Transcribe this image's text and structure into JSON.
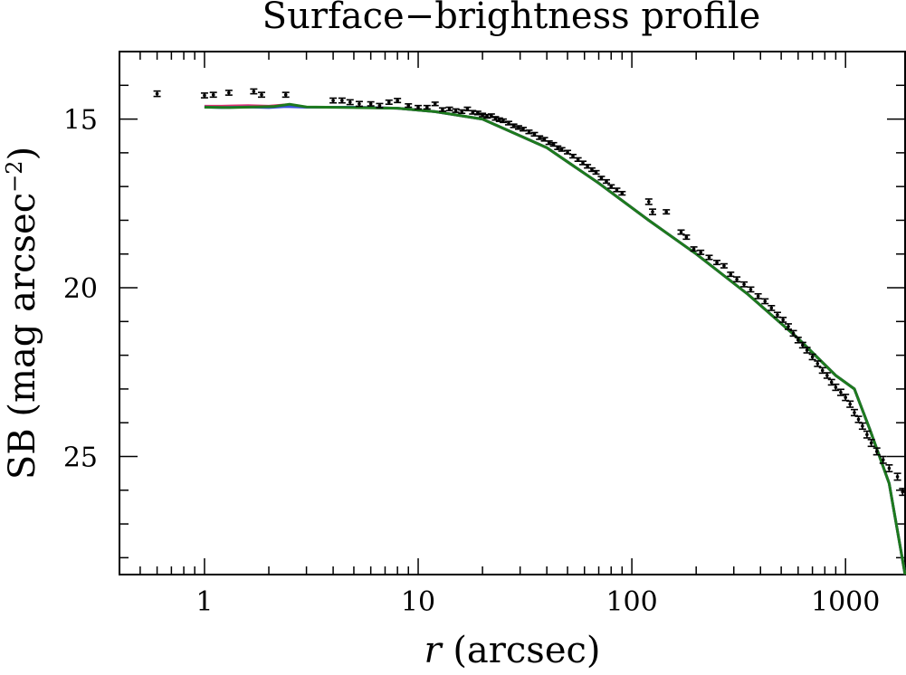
{
  "chart_data": {
    "type": "scatter",
    "title": "Surface−brightness profile",
    "xlabel_italic": "r",
    "xlabel_rest": " (arcsec)",
    "ylabel_main": "SB (mag arcsec",
    "ylabel_sup": "−2",
    "ylabel_close": ")",
    "xscale": "log",
    "xlim": [
      0.4,
      1900
    ],
    "ylim": [
      28.5,
      13
    ],
    "y_inverted": true,
    "x_ticks": [
      {
        "value": 1,
        "label": "1"
      },
      {
        "value": 10,
        "label": "10"
      },
      {
        "value": 100,
        "label": "100"
      },
      {
        "value": 1000,
        "label": "1000"
      }
    ],
    "y_ticks": [
      {
        "value": 15,
        "label": "15"
      },
      {
        "value": 20,
        "label": "20"
      },
      {
        "value": 25,
        "label": "25"
      }
    ],
    "y_minor_step": 1,
    "series": [
      {
        "kind": "errorbar",
        "color": "#000000",
        "points": [
          [
            0.6,
            14.25,
            0.08
          ],
          [
            1.0,
            14.3,
            0.07
          ],
          [
            1.1,
            14.28,
            0.07
          ],
          [
            1.3,
            14.22,
            0.07
          ],
          [
            1.7,
            14.18,
            0.07
          ],
          [
            1.85,
            14.28,
            0.07
          ],
          [
            2.4,
            14.28,
            0.07
          ],
          [
            4.0,
            14.45,
            0.07
          ],
          [
            4.4,
            14.45,
            0.07
          ],
          [
            4.8,
            14.5,
            0.07
          ],
          [
            5.3,
            14.55,
            0.07
          ],
          [
            6.0,
            14.55,
            0.06
          ],
          [
            6.6,
            14.6,
            0.06
          ],
          [
            7.3,
            14.5,
            0.06
          ],
          [
            8.0,
            14.45,
            0.06
          ],
          [
            9.0,
            14.6,
            0.05
          ],
          [
            10.0,
            14.65,
            0.05
          ],
          [
            11.0,
            14.65,
            0.05
          ],
          [
            12.0,
            14.55,
            0.05
          ],
          [
            13.0,
            14.72,
            0.05
          ],
          [
            14.0,
            14.7,
            0.05
          ],
          [
            15.0,
            14.75,
            0.05
          ],
          [
            16.0,
            14.78,
            0.05
          ],
          [
            17.0,
            14.7,
            0.05
          ],
          [
            18.0,
            14.8,
            0.05
          ],
          [
            19.0,
            14.82,
            0.05
          ],
          [
            20.0,
            14.88,
            0.05
          ],
          [
            21.0,
            14.92,
            0.05
          ],
          [
            22.0,
            14.9,
            0.05
          ],
          [
            23.0,
            14.98,
            0.05
          ],
          [
            24.0,
            15.02,
            0.05
          ],
          [
            25.0,
            15.05,
            0.05
          ],
          [
            26.5,
            15.12,
            0.05
          ],
          [
            28.0,
            15.2,
            0.05
          ],
          [
            29.5,
            15.25,
            0.05
          ],
          [
            31.0,
            15.3,
            0.05
          ],
          [
            33.0,
            15.38,
            0.05
          ],
          [
            35.0,
            15.45,
            0.05
          ],
          [
            37.0,
            15.55,
            0.05
          ],
          [
            39.0,
            15.6,
            0.05
          ],
          [
            41.0,
            15.7,
            0.05
          ],
          [
            43.0,
            15.75,
            0.05
          ],
          [
            45.0,
            15.85,
            0.05
          ],
          [
            47.0,
            15.9,
            0.05
          ],
          [
            50.0,
            15.98,
            0.05
          ],
          [
            53.0,
            16.1,
            0.05
          ],
          [
            56.0,
            16.2,
            0.05
          ],
          [
            59.0,
            16.3,
            0.05
          ],
          [
            62.0,
            16.4,
            0.05
          ],
          [
            65.0,
            16.5,
            0.05
          ],
          [
            68.0,
            16.58,
            0.05
          ],
          [
            72.0,
            16.75,
            0.05
          ],
          [
            76.0,
            16.85,
            0.05
          ],
          [
            80.0,
            17.0,
            0.05
          ],
          [
            85.0,
            17.1,
            0.05
          ],
          [
            90.0,
            17.2,
            0.05
          ],
          [
            120.0,
            17.45,
            0.08
          ],
          [
            125.0,
            17.75,
            0.08
          ],
          [
            145.0,
            17.75,
            0.06
          ],
          [
            170.0,
            18.35,
            0.06
          ],
          [
            180.0,
            18.5,
            0.06
          ],
          [
            195.0,
            18.85,
            0.06
          ],
          [
            210.0,
            18.95,
            0.06
          ],
          [
            230.0,
            19.1,
            0.06
          ],
          [
            250.0,
            19.25,
            0.06
          ],
          [
            270.0,
            19.35,
            0.06
          ],
          [
            290.0,
            19.6,
            0.06
          ],
          [
            310.0,
            19.75,
            0.07
          ],
          [
            335.0,
            19.9,
            0.07
          ],
          [
            360.0,
            20.05,
            0.07
          ],
          [
            390.0,
            20.25,
            0.07
          ],
          [
            420.0,
            20.4,
            0.07
          ],
          [
            450.0,
            20.6,
            0.07
          ],
          [
            480.0,
            20.8,
            0.07
          ],
          [
            510.0,
            20.95,
            0.07
          ],
          [
            540.0,
            21.15,
            0.08
          ],
          [
            570.0,
            21.35,
            0.08
          ],
          [
            600.0,
            21.55,
            0.08
          ],
          [
            630.0,
            21.7,
            0.08
          ],
          [
            660.0,
            21.85,
            0.08
          ],
          [
            700.0,
            22.05,
            0.08
          ],
          [
            740.0,
            22.25,
            0.08
          ],
          [
            780.0,
            22.45,
            0.08
          ],
          [
            820.0,
            22.6,
            0.08
          ],
          [
            860.0,
            22.8,
            0.08
          ],
          [
            900.0,
            22.95,
            0.09
          ],
          [
            950.0,
            23.1,
            0.09
          ],
          [
            1000.0,
            23.25,
            0.09
          ],
          [
            1050.0,
            23.45,
            0.09
          ],
          [
            1100.0,
            23.7,
            0.09
          ],
          [
            1150.0,
            23.9,
            0.09
          ],
          [
            1200.0,
            24.1,
            0.09
          ],
          [
            1260.0,
            24.35,
            0.1
          ],
          [
            1320.0,
            24.6,
            0.1
          ],
          [
            1400.0,
            24.85,
            0.1
          ],
          [
            1500.0,
            25.1,
            0.1
          ],
          [
            1600.0,
            25.35,
            0.1
          ],
          [
            1750.0,
            25.6,
            0.1
          ],
          [
            1850.0,
            26.05,
            0.1
          ]
        ]
      },
      {
        "kind": "line",
        "color": "#e03070",
        "points": [
          [
            1.0,
            14.62
          ],
          [
            1.2,
            14.62
          ],
          [
            1.6,
            14.6
          ],
          [
            2.0,
            14.62
          ],
          [
            2.4,
            14.58
          ],
          [
            3.0,
            14.65
          ],
          [
            5.0,
            14.65
          ],
          [
            8.0,
            14.68
          ],
          [
            12.0,
            14.78
          ],
          [
            20.0,
            15.0
          ],
          [
            40.0,
            15.85
          ],
          [
            70.0,
            16.9
          ],
          [
            120.0,
            18.0
          ],
          [
            200.0,
            19.0
          ],
          [
            350.0,
            20.2
          ],
          [
            600.0,
            21.5
          ],
          [
            900.0,
            22.6
          ],
          [
            1100.0,
            23.0
          ],
          [
            1300.0,
            24.2
          ],
          [
            1600.0,
            25.8
          ],
          [
            1900.0,
            28.5
          ]
        ]
      },
      {
        "kind": "line",
        "color": "#3a52d8",
        "points": [
          [
            1.0,
            14.64
          ],
          [
            1.2,
            14.66
          ],
          [
            1.6,
            14.64
          ],
          [
            2.0,
            14.66
          ],
          [
            2.4,
            14.63
          ],
          [
            3.0,
            14.65
          ],
          [
            5.0,
            14.65
          ],
          [
            8.0,
            14.68
          ],
          [
            12.0,
            14.78
          ],
          [
            20.0,
            15.0
          ],
          [
            40.0,
            15.85
          ],
          [
            70.0,
            16.9
          ],
          [
            120.0,
            18.0
          ],
          [
            200.0,
            19.0
          ],
          [
            350.0,
            20.2
          ],
          [
            600.0,
            21.5
          ],
          [
            900.0,
            22.6
          ],
          [
            1100.0,
            23.0
          ],
          [
            1300.0,
            24.2
          ],
          [
            1600.0,
            25.8
          ],
          [
            1900.0,
            28.5
          ]
        ]
      },
      {
        "kind": "line",
        "color": "#1d7a1d",
        "points": [
          [
            1.0,
            14.65
          ],
          [
            1.3,
            14.66
          ],
          [
            1.7,
            14.64
          ],
          [
            2.1,
            14.63
          ],
          [
            2.5,
            14.56
          ],
          [
            3.0,
            14.64
          ],
          [
            5.0,
            14.66
          ],
          [
            8.0,
            14.68
          ],
          [
            12.0,
            14.78
          ],
          [
            20.0,
            15.0
          ],
          [
            40.0,
            15.85
          ],
          [
            70.0,
            16.9
          ],
          [
            120.0,
            18.0
          ],
          [
            200.0,
            19.0
          ],
          [
            350.0,
            20.2
          ],
          [
            600.0,
            21.5
          ],
          [
            900.0,
            22.6
          ],
          [
            1100.0,
            23.0
          ],
          [
            1300.0,
            24.2
          ],
          [
            1600.0,
            25.8
          ],
          [
            1900.0,
            28.5
          ]
        ]
      }
    ]
  }
}
